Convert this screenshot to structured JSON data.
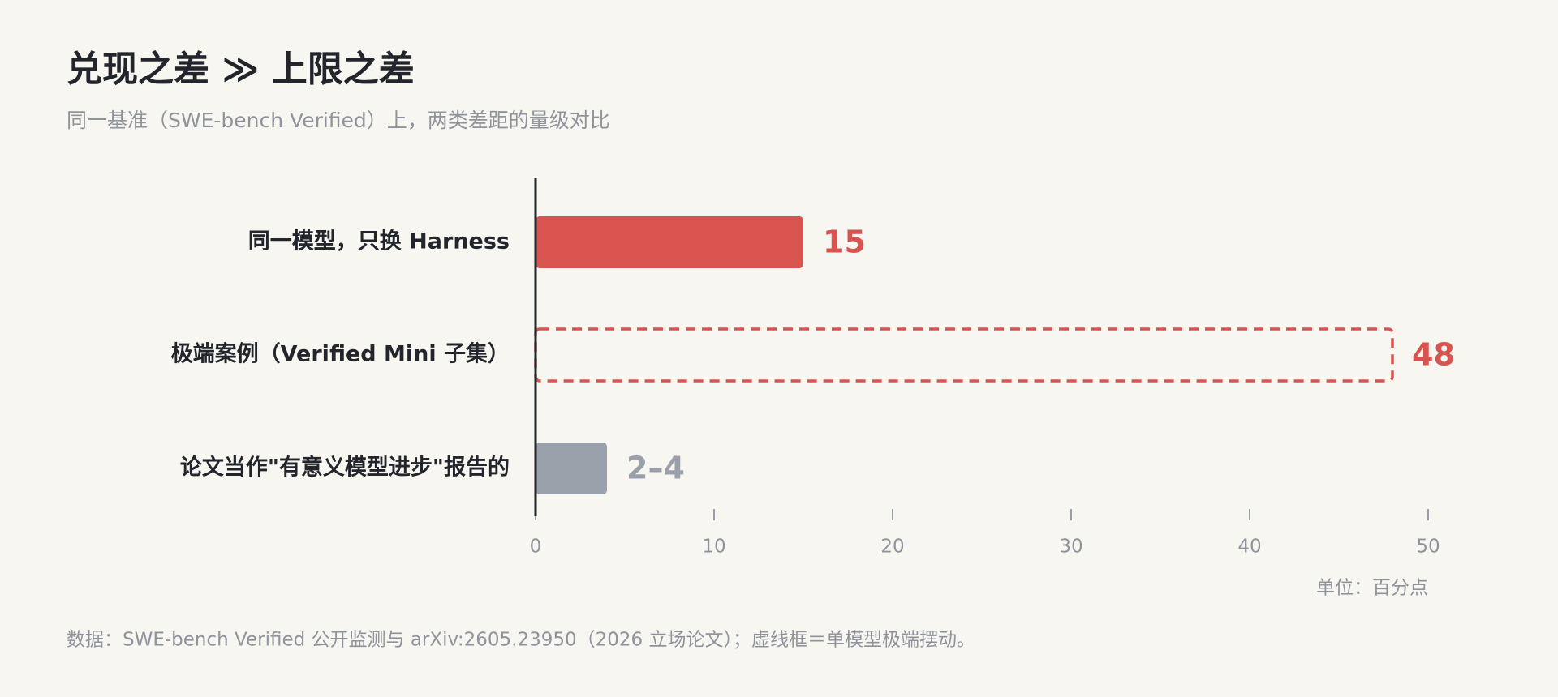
{
  "chart_data": {
    "type": "hbar",
    "title": "兑现之差 ≫ 上限之差",
    "subtitle": "同一基准（SWE-bench Verified）上，两类差距的量级对比",
    "categories": [
      "同一模型，只换 Harness",
      "极端案例（Verified Mini 子集）",
      "论文当作\"有意义模型进步\"报告的"
    ],
    "values": [
      15,
      48,
      4
    ],
    "value_labels": [
      "15",
      "48",
      "2–4"
    ],
    "colors": [
      "#d9534f",
      "#d9534f",
      "#9aa0aa"
    ],
    "styles": [
      "solid",
      "dashed",
      "solid"
    ],
    "xlim": [
      0,
      50
    ],
    "xticks": [
      0,
      10,
      20,
      30,
      40,
      50
    ],
    "unit_label": "单位：百分点",
    "footnote": "数据：SWE-bench Verified 公开监测与 arXiv:2605.23950（2026 立场论文）；虚线框＝单模型极端摆动。"
  }
}
